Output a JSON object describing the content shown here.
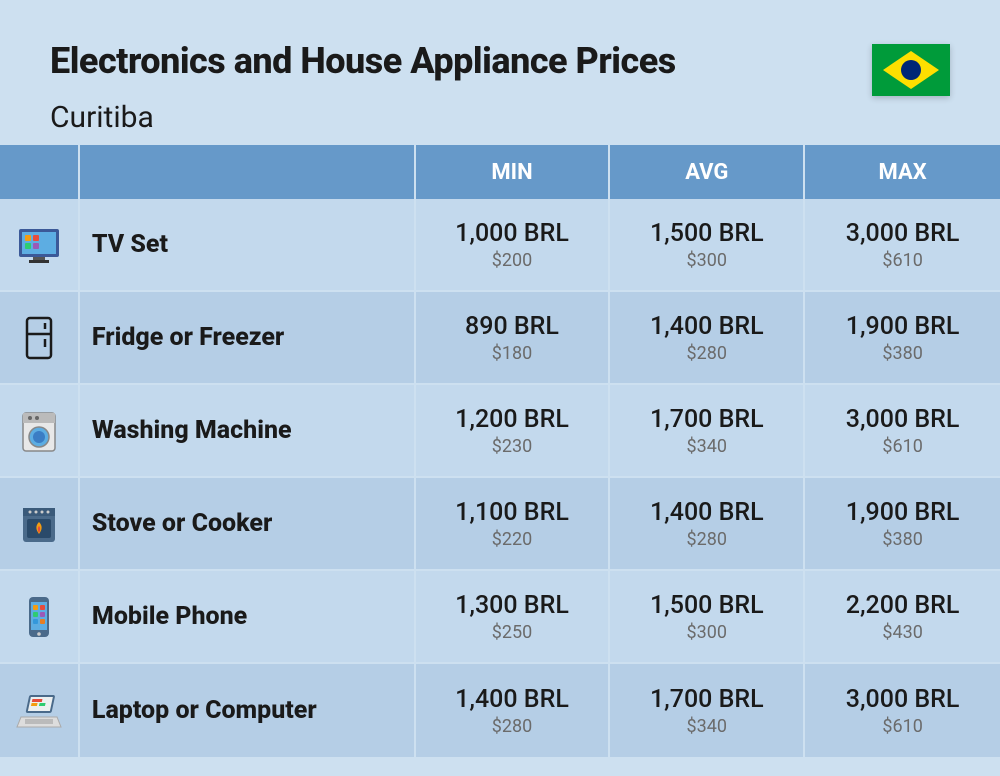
{
  "header": {
    "title": "Electronics and House Appliance Prices",
    "subtitle": "Curitiba",
    "flag_name": "brazil-flag"
  },
  "columns": {
    "min": "MIN",
    "avg": "AVG",
    "max": "MAX"
  },
  "colors": {
    "page_bg": "#cde0f0",
    "header_cell_bg": "#6699c9",
    "header_text": "#ffffff",
    "row_odd_bg": "#c3d9ed",
    "row_even_bg": "#b5cee6",
    "text_primary": "#1a1a1a",
    "text_secondary": "#6b6b6b"
  },
  "rows": [
    {
      "icon": "tv-icon",
      "name": "TV Set",
      "min_brl": "1,000 BRL",
      "min_usd": "$200",
      "avg_brl": "1,500 BRL",
      "avg_usd": "$300",
      "max_brl": "3,000 BRL",
      "max_usd": "$610"
    },
    {
      "icon": "fridge-icon",
      "name": "Fridge or Freezer",
      "min_brl": "890 BRL",
      "min_usd": "$180",
      "avg_brl": "1,400 BRL",
      "avg_usd": "$280",
      "max_brl": "1,900 BRL",
      "max_usd": "$380"
    },
    {
      "icon": "washing-machine-icon",
      "name": "Washing Machine",
      "min_brl": "1,200 BRL",
      "min_usd": "$230",
      "avg_brl": "1,700 BRL",
      "avg_usd": "$340",
      "max_brl": "3,000 BRL",
      "max_usd": "$610"
    },
    {
      "icon": "stove-icon",
      "name": "Stove or Cooker",
      "min_brl": "1,100 BRL",
      "min_usd": "$220",
      "avg_brl": "1,400 BRL",
      "avg_usd": "$280",
      "max_brl": "1,900 BRL",
      "max_usd": "$380"
    },
    {
      "icon": "mobile-phone-icon",
      "name": "Mobile Phone",
      "min_brl": "1,300 BRL",
      "min_usd": "$250",
      "avg_brl": "1,500 BRL",
      "avg_usd": "$300",
      "max_brl": "2,200 BRL",
      "max_usd": "$430"
    },
    {
      "icon": "laptop-icon",
      "name": "Laptop or Computer",
      "min_brl": "1,400 BRL",
      "min_usd": "$280",
      "avg_brl": "1,700 BRL",
      "avg_usd": "$340",
      "max_brl": "3,000 BRL",
      "max_usd": "$610"
    }
  ]
}
